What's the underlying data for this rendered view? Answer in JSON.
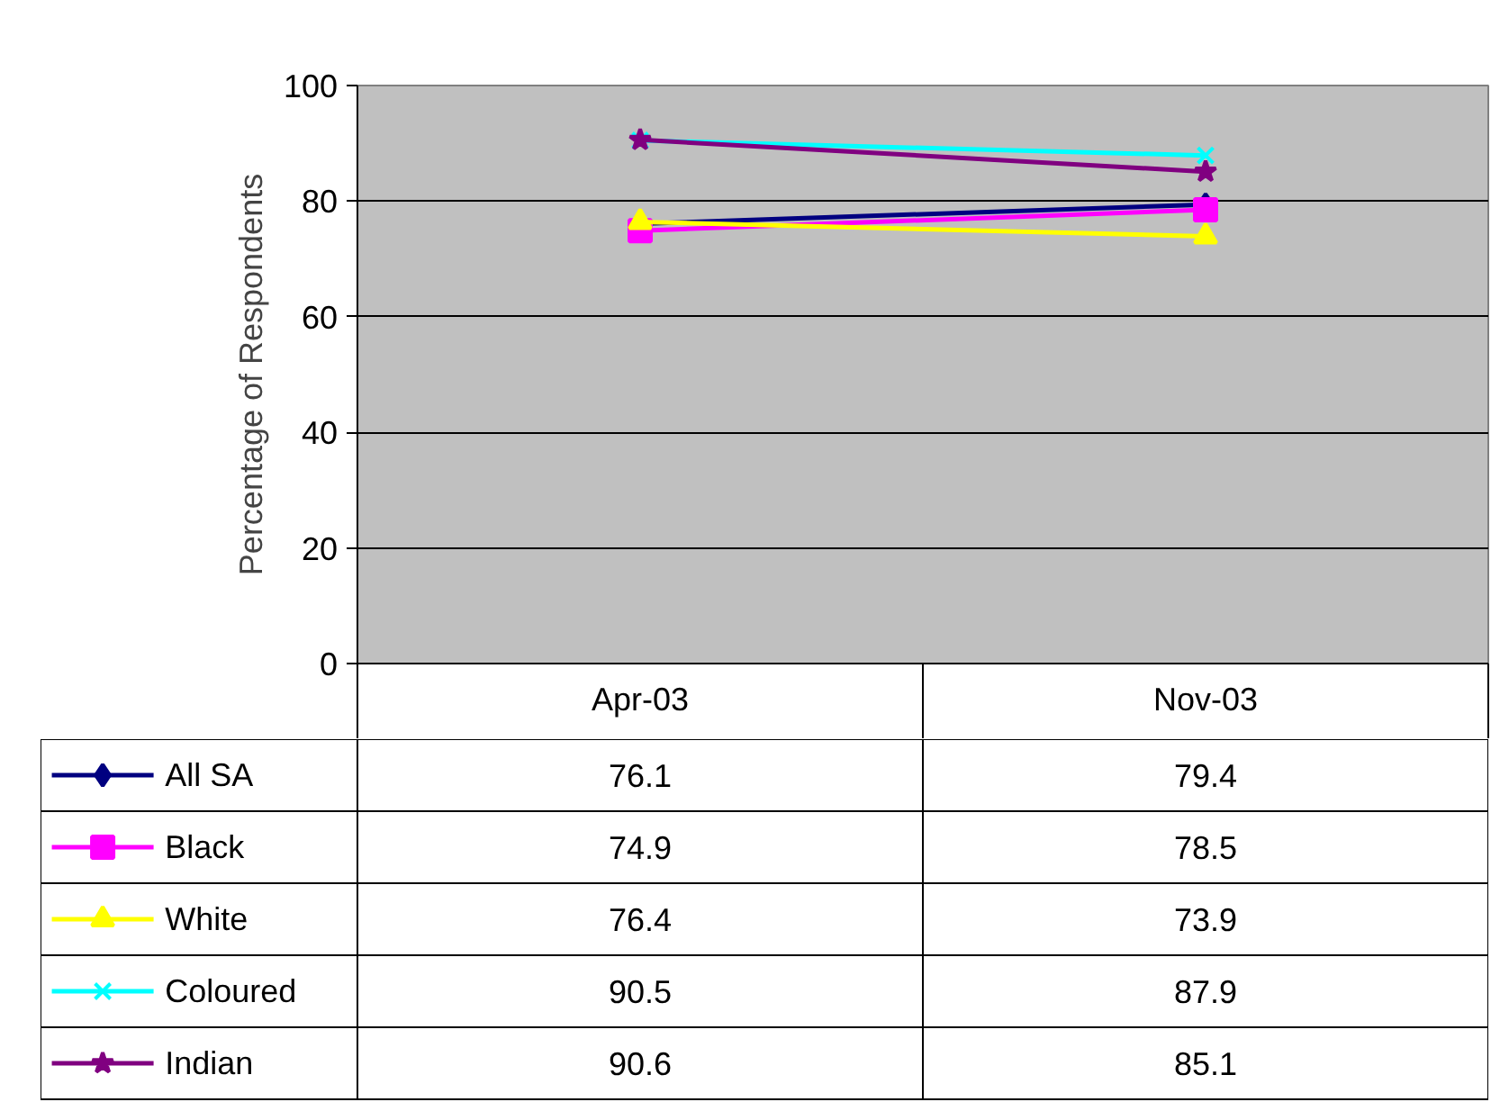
{
  "chart_data": {
    "type": "line",
    "ylabel": "Percentage of Respondents",
    "categories": [
      "Apr-03",
      "Nov-03"
    ],
    "ylim": [
      0,
      100
    ],
    "yticks": [
      0,
      20,
      40,
      60,
      80,
      100
    ],
    "grid": "y",
    "legend": "bottom",
    "data_labels": true,
    "series": [
      {
        "name": "All SA",
        "color": "#000080",
        "marker": "diamond",
        "values": [
          76.1,
          79.4
        ]
      },
      {
        "name": "Black",
        "color": "#ff00ff",
        "marker": "square",
        "values": [
          74.9,
          78.5
        ]
      },
      {
        "name": "White",
        "color": "#ffff00",
        "marker": "triangle",
        "values": [
          76.4,
          73.9
        ]
      },
      {
        "name": "Coloured",
        "color": "#00ffff",
        "marker": "cross",
        "values": [
          90.5,
          87.9
        ]
      },
      {
        "name": "Indian",
        "color": "#800080",
        "marker": "star",
        "values": [
          90.6,
          85.1
        ]
      }
    ]
  }
}
